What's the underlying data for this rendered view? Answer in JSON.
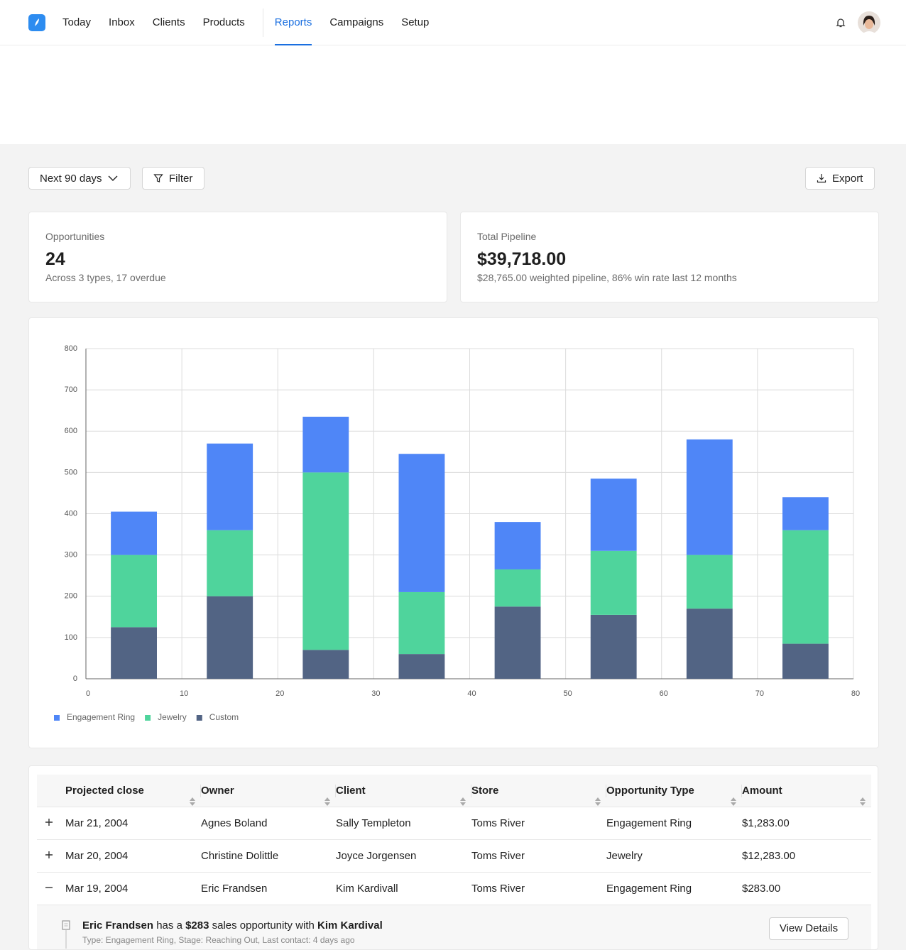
{
  "nav": {
    "links": [
      {
        "label": "Today"
      },
      {
        "label": "Inbox"
      },
      {
        "label": "Clients"
      },
      {
        "label": "Products"
      },
      {
        "label": "Reports",
        "active": true
      },
      {
        "label": "Campaigns"
      },
      {
        "label": "Setup"
      }
    ]
  },
  "toolbar": {
    "range": "Next 90 days",
    "filter": "Filter",
    "export": "Export"
  },
  "cards": [
    {
      "label": "Opportunities",
      "value": "24",
      "subtitle": "Across 3 types, 17 overdue"
    },
    {
      "label": "Total Pipeline",
      "value": "$39,718.00",
      "subtitle": "$28,765.00 weighted pipeline, 86% win rate last 12 months"
    }
  ],
  "chart_data": {
    "type": "bar",
    "stacked": true,
    "x": [
      5,
      15,
      25,
      35,
      45,
      55,
      65,
      75
    ],
    "series": [
      {
        "name": "Engagement Ring",
        "color": "#4f86f7",
        "values": [
          105,
          210,
          135,
          335,
          115,
          175,
          280,
          80
        ]
      },
      {
        "name": "Jewelry",
        "color": "#4fd49c",
        "values": [
          175,
          160,
          430,
          150,
          90,
          155,
          130,
          275
        ]
      },
      {
        "name": "Custom",
        "color": "#526484",
        "values": [
          125,
          200,
          70,
          60,
          175,
          155,
          170,
          85
        ]
      }
    ],
    "xlim": [
      0,
      80
    ],
    "xticks": [
      0,
      10,
      20,
      30,
      40,
      50,
      60,
      70,
      80
    ],
    "ylim": [
      0,
      800
    ],
    "yticks": [
      0,
      100,
      200,
      300,
      400,
      500,
      600,
      700,
      800
    ],
    "grid": true,
    "legend": "bottom-left"
  },
  "table": {
    "headers": [
      "Projected close",
      "Owner",
      "Client",
      "Store",
      "Opportunity Type",
      "Amount"
    ],
    "rows": [
      {
        "cells": [
          "Mar 21, 2004",
          "Agnes Boland",
          "Sally Templeton",
          "Toms River",
          "Engagement Ring",
          "$1,283.00"
        ]
      },
      {
        "cells": [
          "Mar 20, 2004",
          "Christine Dolittle",
          "Joyce Jorgensen",
          "Toms River",
          "Jewelry",
          "$12,283.00"
        ]
      },
      {
        "cells": [
          "Mar 19, 2004",
          "Eric Frandsen",
          "Kim Kardivall",
          "Toms River",
          "Engagement Ring",
          "$283.00"
        ],
        "expanded": true
      }
    ],
    "detail": {
      "parts": [
        "Eric Frandsen",
        " has a ",
        "$283",
        " sales opportunity with ",
        "Kim Kardival"
      ],
      "meta": "Type: Engagement Ring, Stage: Reaching Out, Last contact: 4 days ago",
      "button": "View Details"
    }
  }
}
